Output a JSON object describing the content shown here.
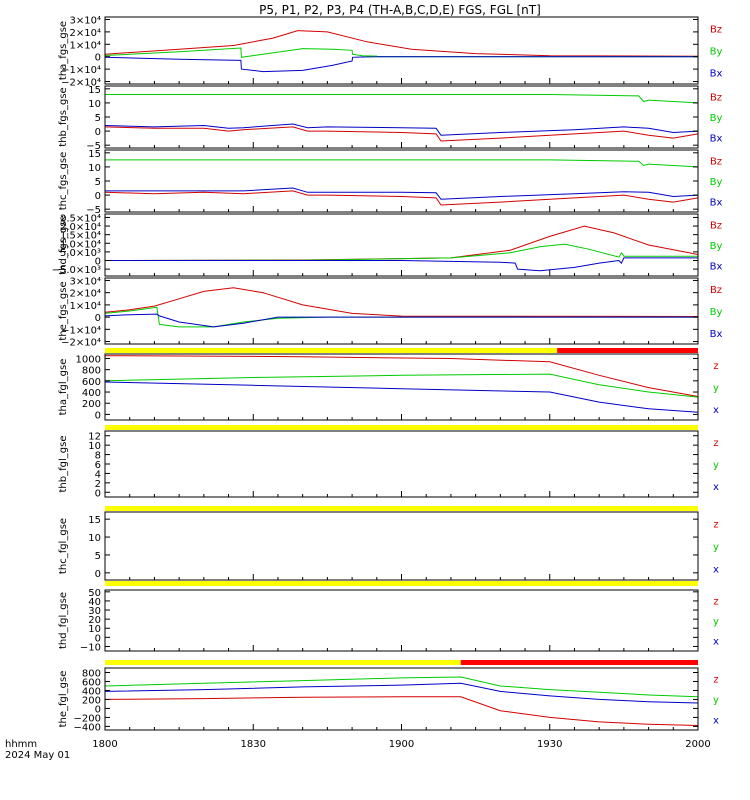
{
  "title": "P5, P1, P2, P3, P4 (TH-A,B,C,D,E) FGS, FGL [nT]",
  "footer": {
    "time_label": "hhmm",
    "date_label": "2024 May 01"
  },
  "colors": {
    "z": "#d40000",
    "y": "#00cc00",
    "x": "#0000c8",
    "bar_yellow": "#ffff00",
    "bar_red": "#ff0000"
  },
  "x_axis": {
    "ticks": [
      "1800",
      "1830",
      "1900",
      "1930",
      "2000"
    ],
    "range_minutes": [
      0,
      120
    ]
  },
  "chart_data": [
    {
      "type": "line",
      "name": "tha_fgs_gse",
      "ylim": [
        -22000,
        32000
      ],
      "yticks": [
        "3×10⁴",
        "2×10⁴",
        "1×10⁴",
        "0",
        "−1×10⁴",
        "−2×10⁴"
      ],
      "ytick_values": [
        30000,
        20000,
        10000,
        0,
        -10000,
        -20000
      ],
      "legend": [
        "Bz",
        "By",
        "Bx"
      ],
      "series": [
        {
          "name": "Bz",
          "color": "z",
          "x": [
            0,
            15,
            26,
            34,
            39,
            45,
            53,
            62,
            75,
            90,
            120
          ],
          "y": [
            2000,
            6000,
            9000,
            15000,
            21000,
            20000,
            12000,
            6000,
            2500,
            800,
            300
          ]
        },
        {
          "name": "By",
          "color": "y",
          "x": [
            0,
            15,
            27.5,
            27.6,
            32,
            40,
            46,
            50,
            50.1,
            52,
            55,
            55.1,
            120
          ],
          "y": [
            1000,
            4000,
            7000,
            -500,
            2000,
            6500,
            6000,
            5200,
            2000,
            800,
            500,
            100,
            100
          ]
        },
        {
          "name": "Bx",
          "color": "x",
          "x": [
            0,
            15,
            27.5,
            27.6,
            32,
            40,
            46,
            50,
            50.1,
            52,
            55,
            55.1,
            120
          ],
          "y": [
            -500,
            -2000,
            -3000,
            -10000,
            -12000,
            -11000,
            -7000,
            -3500,
            -500,
            -200,
            -100,
            0,
            0
          ]
        }
      ]
    },
    {
      "type": "line",
      "name": "thb_fgs_gse",
      "ylim": [
        -6,
        16
      ],
      "yticks": [
        "15",
        "10",
        "5",
        "0",
        "−5"
      ],
      "ytick_values": [
        15,
        10,
        5,
        0,
        -5
      ],
      "legend": [
        "Bz",
        "By",
        "Bx"
      ],
      "series": [
        {
          "name": "By",
          "color": "y",
          "x": [
            0,
            30,
            60,
            90,
            108,
            109,
            110,
            120
          ],
          "y": [
            13,
            13,
            13,
            13,
            12.5,
            10.5,
            11,
            10
          ]
        },
        {
          "name": "Bx",
          "color": "x",
          "x": [
            0,
            10,
            20,
            25,
            28,
            38,
            41,
            45,
            60,
            67,
            68,
            80,
            95,
            105,
            110,
            115,
            120
          ],
          "y": [
            2,
            1.5,
            2,
            1,
            1.2,
            2.5,
            1.2,
            1.5,
            1.2,
            1.0,
            -1.5,
            -0.5,
            0.5,
            1.5,
            1.0,
            -0.5,
            0
          ]
        },
        {
          "name": "Bz",
          "color": "z",
          "x": [
            0,
            10,
            20,
            25,
            28,
            38,
            41,
            45,
            60,
            67,
            68,
            80,
            95,
            105,
            110,
            115,
            120
          ],
          "y": [
            1.5,
            1.0,
            1.0,
            0,
            0.5,
            1.5,
            0,
            0,
            -0.5,
            -1.0,
            -3.5,
            -2.5,
            -1.0,
            0,
            -1.5,
            -2.5,
            -1.0
          ]
        }
      ]
    },
    {
      "type": "line",
      "name": "thc_fgs_gse",
      "ylim": [
        -6,
        16
      ],
      "yticks": [
        "15",
        "10",
        "5",
        "0",
        "−5"
      ],
      "ytick_values": [
        15,
        10,
        5,
        0,
        -5
      ],
      "legend": [
        "Bz",
        "By",
        "Bx"
      ],
      "series": [
        {
          "name": "By",
          "color": "y",
          "x": [
            0,
            30,
            60,
            90,
            108,
            109,
            110,
            120
          ],
          "y": [
            12.5,
            12.5,
            12.5,
            12.5,
            12,
            10.5,
            11,
            10
          ]
        },
        {
          "name": "Bx",
          "color": "x",
          "x": [
            0,
            10,
            20,
            28,
            38,
            41,
            45,
            60,
            67,
            68,
            80,
            95,
            105,
            110,
            115,
            120
          ],
          "y": [
            1.5,
            1.5,
            1.5,
            1.5,
            2.5,
            1.0,
            1.0,
            1.0,
            0.8,
            -1.5,
            -0.5,
            0.5,
            1.2,
            1.0,
            -0.5,
            0
          ]
        },
        {
          "name": "Bz",
          "color": "z",
          "x": [
            0,
            10,
            20,
            28,
            38,
            41,
            45,
            60,
            67,
            68,
            80,
            95,
            105,
            110,
            115,
            120
          ],
          "y": [
            1.0,
            0.5,
            1.0,
            0.5,
            1.5,
            0,
            0,
            -0.5,
            -1.0,
            -3.5,
            -2.5,
            -1.0,
            0,
            -1.5,
            -2.5,
            -1.0
          ]
        }
      ]
    },
    {
      "type": "line",
      "name": "thd_fgs_gse",
      "ylim": [
        -9000,
        27000
      ],
      "yticks": [
        "2.5×10⁴",
        "2.0×10⁴",
        "1.5×10⁴",
        "1.0×10⁴",
        "5.0×10³",
        "0",
        "−5.0×10³"
      ],
      "ytick_values": [
        25000,
        20000,
        15000,
        10000,
        5000,
        0,
        -5000
      ],
      "legend": [
        "Bz",
        "By",
        "Bx"
      ],
      "series": [
        {
          "name": "Bz",
          "color": "z",
          "x": [
            0,
            40,
            70,
            82,
            90,
            97,
            103,
            110,
            120
          ],
          "y": [
            0,
            300,
            1500,
            6000,
            14000,
            20000,
            16000,
            9000,
            3500
          ]
        },
        {
          "name": "By",
          "color": "y",
          "x": [
            0,
            40,
            70,
            82,
            88,
            93,
            98,
            104,
            104.5,
            105,
            120
          ],
          "y": [
            0,
            200,
            1500,
            4500,
            8000,
            9500,
            6500,
            2000,
            4500,
            2500,
            2500
          ]
        },
        {
          "name": "Bx",
          "color": "x",
          "x": [
            0,
            60,
            80,
            83,
            83.5,
            88,
            95,
            100,
            104,
            104.5,
            105,
            120
          ],
          "y": [
            0,
            0,
            -1000,
            -1500,
            -5000,
            -6000,
            -4000,
            -1500,
            0,
            -1500,
            1500,
            1500
          ]
        }
      ]
    },
    {
      "type": "line",
      "name": "the_fgs_gse",
      "ylim": [
        -22000,
        32000
      ],
      "yticks": [
        "3×10⁴",
        "2×10⁴",
        "1×10⁴",
        "0",
        "−1×10⁴",
        "−2×10⁴"
      ],
      "ytick_values": [
        30000,
        20000,
        10000,
        0,
        -10000,
        -20000
      ],
      "legend": [
        "Bz",
        "By",
        "Bx"
      ],
      "series": [
        {
          "name": "Bz",
          "color": "z",
          "x": [
            0,
            5,
            10,
            15,
            20,
            26,
            32,
            40,
            50,
            60,
            120
          ],
          "y": [
            4000,
            6000,
            9000,
            15000,
            21000,
            24000,
            20000,
            10000,
            3000,
            800,
            500
          ]
        },
        {
          "name": "By",
          "color": "y",
          "x": [
            0,
            5,
            10.5,
            11,
            15,
            22,
            28,
            35,
            45,
            55,
            120
          ],
          "y": [
            3000,
            5000,
            8000,
            -6000,
            -8000,
            -8000,
            -4000,
            -1000,
            0,
            0,
            0
          ]
        },
        {
          "name": "Bx",
          "color": "x",
          "x": [
            0,
            5,
            10.5,
            11,
            15,
            22,
            28,
            35,
            45,
            120
          ],
          "y": [
            1000,
            2000,
            2500,
            1000,
            -4000,
            -8000,
            -5000,
            0,
            0,
            0
          ]
        }
      ]
    },
    {
      "type": "line",
      "name": "tha_fgl_gse",
      "ylim": [
        -100,
        1080
      ],
      "yticks": [
        "1000",
        "800",
        "600",
        "400",
        "200",
        "0"
      ],
      "ytick_values": [
        1000,
        800,
        600,
        400,
        200,
        0
      ],
      "legend": [
        "z",
        "y",
        "x"
      ],
      "series": [
        {
          "name": "z",
          "color": "z",
          "x": [
            0,
            25,
            40,
            70,
            90,
            100,
            110,
            120
          ],
          "y": [
            1050,
            1040,
            1030,
            1000,
            940,
            700,
            480,
            320
          ]
        },
        {
          "name": "y",
          "color": "y",
          "x": [
            0,
            30,
            60,
            90,
            100,
            110,
            120
          ],
          "y": [
            600,
            660,
            700,
            720,
            530,
            400,
            310
          ]
        },
        {
          "name": "x",
          "color": "x",
          "x": [
            0,
            30,
            60,
            90,
            100,
            110,
            120
          ],
          "y": [
            580,
            520,
            460,
            400,
            220,
            100,
            40
          ]
        }
      ]
    },
    {
      "type": "line",
      "name": "thb_fgl_gse",
      "ylim": [
        -1,
        13
      ],
      "yticks": [
        "12",
        "10",
        "8",
        "6",
        "4",
        "2",
        "0"
      ],
      "ytick_values": [
        12,
        10,
        8,
        6,
        4,
        2,
        0
      ],
      "legend": [
        "z",
        "y",
        "x"
      ],
      "series": []
    },
    {
      "type": "line",
      "name": "thc_fgl_gse",
      "ylim": [
        -2,
        17
      ],
      "yticks": [
        "15",
        "10",
        "5",
        "0"
      ],
      "ytick_values": [
        15,
        10,
        5,
        0
      ],
      "legend": [
        "z",
        "y",
        "x"
      ],
      "series": []
    },
    {
      "type": "line",
      "name": "thd_fgl_gse",
      "ylim": [
        -15,
        52
      ],
      "yticks": [
        "50",
        "40",
        "30",
        "20",
        "10",
        "0",
        "−10"
      ],
      "ytick_values": [
        50,
        40,
        30,
        20,
        10,
        0,
        -10
      ],
      "legend": [
        "z",
        "y",
        "x"
      ],
      "series": []
    },
    {
      "type": "line",
      "name": "the_fgl_gse",
      "ylim": [
        -480,
        900
      ],
      "yticks": [
        "800",
        "600",
        "400",
        "200",
        "0",
        "−200",
        "−400"
      ],
      "ytick_values": [
        800,
        600,
        400,
        200,
        0,
        -200,
        -400
      ],
      "legend": [
        "z",
        "y",
        "x"
      ],
      "series": [
        {
          "name": "y",
          "color": "y",
          "x": [
            0,
            20,
            40,
            60,
            72,
            80,
            90,
            100,
            110,
            120
          ],
          "y": [
            500,
            560,
            620,
            680,
            700,
            500,
            420,
            360,
            300,
            260
          ]
        },
        {
          "name": "x",
          "color": "x",
          "x": [
            0,
            20,
            40,
            60,
            72,
            80,
            90,
            100,
            110,
            120
          ],
          "y": [
            380,
            420,
            480,
            520,
            560,
            380,
            280,
            200,
            150,
            120
          ]
        },
        {
          "name": "z",
          "color": "z",
          "x": [
            0,
            20,
            40,
            60,
            72,
            80,
            90,
            100,
            110,
            120
          ],
          "y": [
            200,
            220,
            250,
            260,
            260,
            -50,
            -200,
            -300,
            -350,
            -380
          ]
        }
      ]
    }
  ],
  "state_bars": [
    {
      "name": "tha-state-bar",
      "segments": [
        {
          "from": 0,
          "to": 91.5,
          "color": "bar_yellow"
        },
        {
          "from": 91.5,
          "to": 120,
          "color": "bar_red"
        }
      ]
    },
    {
      "name": "thb-state-bar",
      "segments": [
        {
          "from": 0,
          "to": 120,
          "color": "bar_yellow"
        }
      ]
    },
    {
      "name": "thc-state-bar",
      "segments": [
        {
          "from": 0,
          "to": 120,
          "color": "bar_yellow"
        }
      ]
    },
    {
      "name": "thd-state-bar",
      "segments": [
        {
          "from": 0,
          "to": 120,
          "color": "bar_yellow"
        }
      ]
    },
    {
      "name": "the-state-bar",
      "segments": [
        {
          "from": 0,
          "to": 72,
          "color": "bar_yellow"
        },
        {
          "from": 72,
          "to": 120,
          "color": "bar_red"
        }
      ]
    }
  ]
}
